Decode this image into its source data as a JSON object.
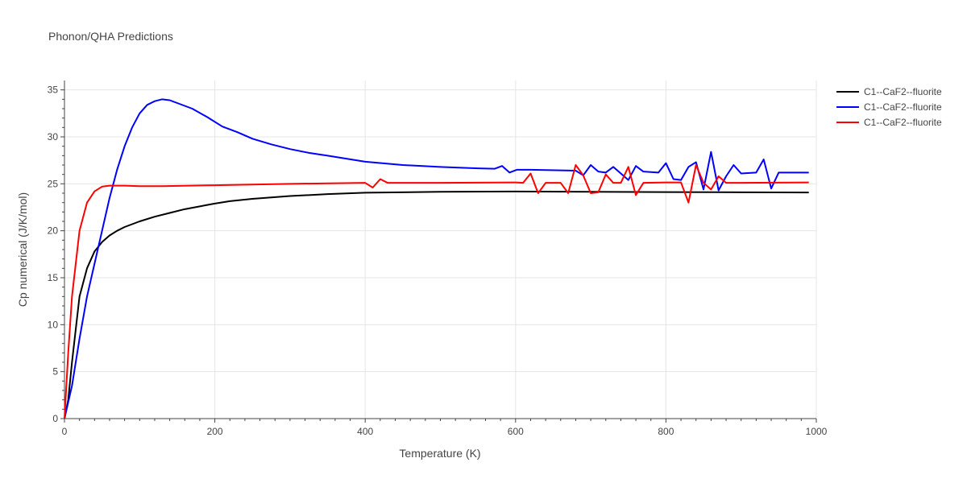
{
  "chart_data": {
    "type": "line",
    "title": "Phonon/QHA Predictions",
    "xlabel": "Temperature (K)",
    "ylabel": "Cp numerical (J/K/mol)",
    "xlim": [
      0,
      1000
    ],
    "ylim": [
      0,
      36
    ],
    "x_ticks": [
      0,
      200,
      400,
      600,
      800,
      1000
    ],
    "y_ticks": [
      0,
      5,
      10,
      15,
      20,
      25,
      30,
      35
    ],
    "x_tick_labels": [
      "0",
      "200",
      "400",
      "600",
      "800",
      "1000"
    ],
    "y_tick_labels": [
      "0",
      "5",
      "10",
      "15",
      "20",
      "25",
      "30",
      "35"
    ],
    "grid": true,
    "legend_position": "top-right",
    "series": [
      {
        "name": "C1--CaF2--fluorite",
        "color": "#000000",
        "points": [
          [
            0,
            0
          ],
          [
            5,
            2
          ],
          [
            10,
            6
          ],
          [
            20,
            13
          ],
          [
            30,
            16
          ],
          [
            40,
            17.8
          ],
          [
            50,
            18.8
          ],
          [
            60,
            19.5
          ],
          [
            70,
            20
          ],
          [
            80,
            20.4
          ],
          [
            100,
            21
          ],
          [
            120,
            21.5
          ],
          [
            140,
            21.9
          ],
          [
            160,
            22.3
          ],
          [
            180,
            22.6
          ],
          [
            200,
            22.9
          ],
          [
            220,
            23.15
          ],
          [
            250,
            23.4
          ],
          [
            300,
            23.7
          ],
          [
            350,
            23.9
          ],
          [
            400,
            24.05
          ],
          [
            500,
            24.15
          ],
          [
            600,
            24.18
          ],
          [
            700,
            24.15
          ],
          [
            800,
            24.12
          ],
          [
            900,
            24.1
          ],
          [
            990,
            24.08
          ]
        ]
      },
      {
        "name": "C1--CaF2--fluorite",
        "color": "#0000ff",
        "points": [
          [
            0,
            0
          ],
          [
            10,
            3.5
          ],
          [
            20,
            8.5
          ],
          [
            30,
            13
          ],
          [
            40,
            16.5
          ],
          [
            50,
            20
          ],
          [
            60,
            23.5
          ],
          [
            70,
            26.5
          ],
          [
            80,
            29
          ],
          [
            90,
            31
          ],
          [
            100,
            32.5
          ],
          [
            110,
            33.4
          ],
          [
            120,
            33.8
          ],
          [
            130,
            34
          ],
          [
            140,
            33.9
          ],
          [
            150,
            33.6
          ],
          [
            170,
            33
          ],
          [
            190,
            32.1
          ],
          [
            210,
            31.1
          ],
          [
            230,
            30.5
          ],
          [
            250,
            29.8
          ],
          [
            275,
            29.2
          ],
          [
            300,
            28.7
          ],
          [
            325,
            28.3
          ],
          [
            350,
            28
          ],
          [
            400,
            27.35
          ],
          [
            450,
            27
          ],
          [
            500,
            26.8
          ],
          [
            550,
            26.65
          ],
          [
            572,
            26.6
          ],
          [
            582,
            26.9
          ],
          [
            592,
            26.2
          ],
          [
            602,
            26.5
          ],
          [
            620,
            26.5
          ],
          [
            680,
            26.4
          ],
          [
            690,
            25.9
          ],
          [
            700,
            27
          ],
          [
            710,
            26.3
          ],
          [
            720,
            26.2
          ],
          [
            730,
            26.8
          ],
          [
            740,
            26.1
          ],
          [
            750,
            25.4
          ],
          [
            760,
            26.9
          ],
          [
            770,
            26.3
          ],
          [
            790,
            26.2
          ],
          [
            800,
            27.2
          ],
          [
            810,
            25.5
          ],
          [
            820,
            25.4
          ],
          [
            830,
            26.8
          ],
          [
            840,
            27.3
          ],
          [
            850,
            24.4
          ],
          [
            860,
            28.4
          ],
          [
            870,
            24.3
          ],
          [
            880,
            25.8
          ],
          [
            890,
            27
          ],
          [
            900,
            26.1
          ],
          [
            920,
            26.2
          ],
          [
            930,
            27.6
          ],
          [
            940,
            24.5
          ],
          [
            950,
            26.2
          ],
          [
            990,
            26.2
          ]
        ]
      },
      {
        "name": "C1--CaF2--fluorite",
        "color": "#ff0000",
        "points": [
          [
            0,
            0
          ],
          [
            5,
            7
          ],
          [
            10,
            13
          ],
          [
            20,
            20
          ],
          [
            30,
            23
          ],
          [
            40,
            24.2
          ],
          [
            50,
            24.7
          ],
          [
            60,
            24.8
          ],
          [
            80,
            24.8
          ],
          [
            100,
            24.75
          ],
          [
            130,
            24.75
          ],
          [
            200,
            24.85
          ],
          [
            300,
            25
          ],
          [
            400,
            25.1
          ],
          [
            410,
            24.6
          ],
          [
            420,
            25.5
          ],
          [
            430,
            25.1
          ],
          [
            500,
            25.1
          ],
          [
            600,
            25.15
          ],
          [
            610,
            25.1
          ],
          [
            620,
            26.1
          ],
          [
            630,
            24
          ],
          [
            640,
            25.1
          ],
          [
            660,
            25.1
          ],
          [
            670,
            24
          ],
          [
            680,
            27
          ],
          [
            690,
            25.9
          ],
          [
            700,
            24
          ],
          [
            710,
            24.1
          ],
          [
            720,
            26
          ],
          [
            730,
            25.1
          ],
          [
            740,
            25.1
          ],
          [
            750,
            26.8
          ],
          [
            760,
            23.8
          ],
          [
            770,
            25.1
          ],
          [
            800,
            25.15
          ],
          [
            820,
            25.15
          ],
          [
            830,
            23
          ],
          [
            840,
            27
          ],
          [
            850,
            25.1
          ],
          [
            860,
            24.4
          ],
          [
            870,
            25.8
          ],
          [
            880,
            25.1
          ],
          [
            900,
            25.1
          ],
          [
            990,
            25.15
          ]
        ]
      }
    ]
  }
}
